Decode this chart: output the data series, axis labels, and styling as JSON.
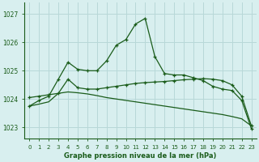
{
  "background_color": "#d8efef",
  "grid_color": "#b8d8d8",
  "line_color": "#1a5c1a",
  "title": "Graphe pression niveau de la mer (hPa)",
  "xlim": [
    -0.5,
    23.5
  ],
  "ylim": [
    1022.6,
    1027.4
  ],
  "yticks": [
    1023,
    1024,
    1025,
    1026,
    1027
  ],
  "xticks": [
    0,
    1,
    2,
    3,
    4,
    5,
    6,
    7,
    8,
    9,
    10,
    11,
    12,
    13,
    14,
    15,
    16,
    17,
    18,
    19,
    20,
    21,
    22,
    23
  ],
  "series_peaked_x": [
    0,
    1,
    2,
    3,
    4,
    5,
    6,
    7,
    8,
    9,
    10,
    11,
    12,
    13,
    14,
    15,
    16,
    17,
    18,
    19,
    20,
    21,
    22,
    23
  ],
  "series_peaked_y": [
    1023.75,
    1023.95,
    1024.1,
    1024.7,
    1025.3,
    1025.05,
    1025.0,
    1025.0,
    1025.35,
    1025.9,
    1026.1,
    1026.65,
    1026.85,
    1025.5,
    1024.9,
    1024.85,
    1024.85,
    1024.75,
    1024.65,
    1024.45,
    1024.35,
    1024.3,
    1023.95,
    1022.95
  ],
  "series_flat_x": [
    0,
    1,
    2,
    3,
    4,
    5,
    6,
    7,
    8,
    9,
    10,
    11,
    12,
    13,
    14,
    15,
    16,
    17,
    18,
    19,
    20,
    21,
    22,
    23
  ],
  "series_flat_y": [
    1024.05,
    1024.1,
    1024.15,
    1024.2,
    1024.7,
    1024.4,
    1024.35,
    1024.35,
    1024.4,
    1024.45,
    1024.5,
    1024.55,
    1024.58,
    1024.6,
    1024.62,
    1024.65,
    1024.68,
    1024.7,
    1024.72,
    1024.7,
    1024.65,
    1024.5,
    1024.1,
    1023.05
  ],
  "series_decline_x": [
    0,
    1,
    2,
    3,
    4,
    5,
    6,
    7,
    8,
    9,
    10,
    11,
    12,
    13,
    14,
    15,
    16,
    17,
    18,
    19,
    20,
    21,
    22,
    23
  ],
  "series_decline_y": [
    1023.75,
    1023.82,
    1023.9,
    1024.2,
    1024.25,
    1024.22,
    1024.18,
    1024.12,
    1024.05,
    1024.0,
    1023.95,
    1023.9,
    1023.85,
    1023.8,
    1023.75,
    1023.7,
    1023.65,
    1023.6,
    1023.55,
    1023.5,
    1023.45,
    1023.38,
    1023.3,
    1023.05
  ]
}
